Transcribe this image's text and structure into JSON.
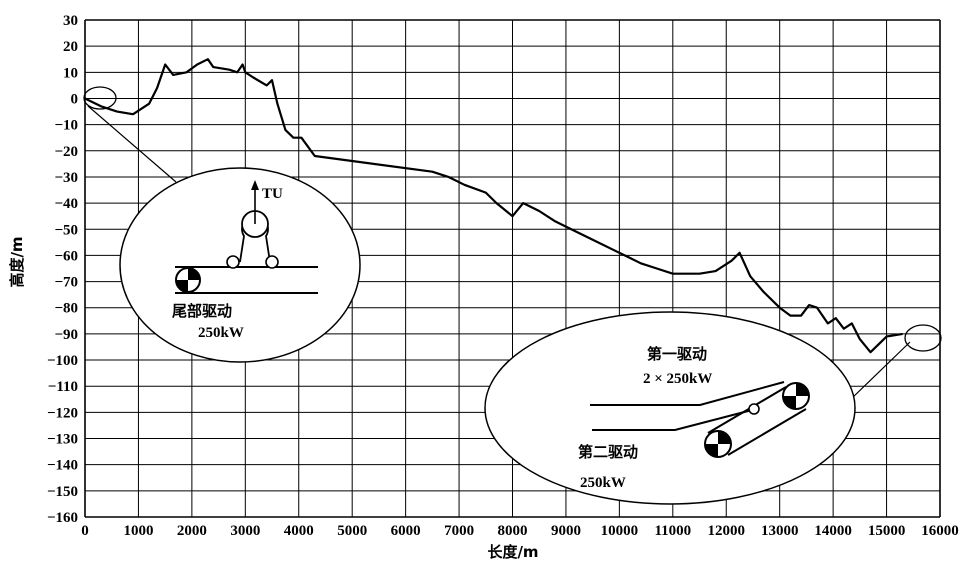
{
  "chart_data": {
    "type": "line",
    "xlabel": "长度/m",
    "ylabel": "高度/m",
    "xlim": [
      0,
      16000
    ],
    "ylim": [
      -160,
      30
    ],
    "xticks": [
      0,
      1000,
      2000,
      3000,
      4000,
      5000,
      6000,
      7000,
      8000,
      9000,
      10000,
      11000,
      12000,
      13000,
      14000,
      15000,
      16000
    ],
    "yticks": [
      30,
      20,
      10,
      0,
      -10,
      -20,
      -30,
      -40,
      -50,
      -60,
      -70,
      -80,
      -90,
      -100,
      -110,
      -120,
      -130,
      -140,
      -150,
      -160
    ],
    "grid": true,
    "series": [
      {
        "x": [
          0,
          300,
          600,
          900,
          1200,
          1350,
          1500,
          1650,
          1900,
          2100,
          2300,
          2400,
          2700,
          2850,
          2950,
          3000,
          3150,
          3400,
          3500,
          3600,
          3750,
          3900,
          4050,
          4300,
          6500,
          6800,
          7100,
          7500,
          7700,
          8000,
          8200,
          8500,
          8800,
          9000,
          9500,
          9900,
          10200,
          10400,
          10700,
          11000,
          11500,
          11800,
          12100,
          12250,
          12450,
          12700,
          13000,
          13200,
          13400,
          13550,
          13700,
          13900,
          14050,
          14200,
          14350,
          14500,
          14700,
          14850,
          15000,
          15300
        ],
        "y": [
          0,
          -3,
          -5,
          -6,
          -2,
          4,
          13,
          9,
          10,
          13,
          15,
          12,
          11,
          10,
          13,
          10,
          8,
          5,
          7,
          -2,
          -12,
          -15,
          -15,
          -22,
          -28,
          -30,
          -33,
          -36,
          -40,
          -45,
          -40,
          -43,
          -47,
          -49,
          -54,
          -58,
          -61,
          -63,
          -65,
          -67,
          -67,
          -66,
          -62,
          -59,
          -68,
          -74,
          -80,
          -83,
          -83,
          -79,
          -80,
          -86,
          -84,
          -88,
          -86,
          -92,
          -97,
          -94,
          -91,
          -90
        ]
      }
    ],
    "annotations": {
      "tail": {
        "title": "尾部驱动",
        "power": "250kW",
        "tu": "TU"
      },
      "head": {
        "first_title": "第一驱动",
        "first_power": "2 × 250kW",
        "second_title": "第二驱动",
        "second_power": "250kW"
      }
    }
  }
}
